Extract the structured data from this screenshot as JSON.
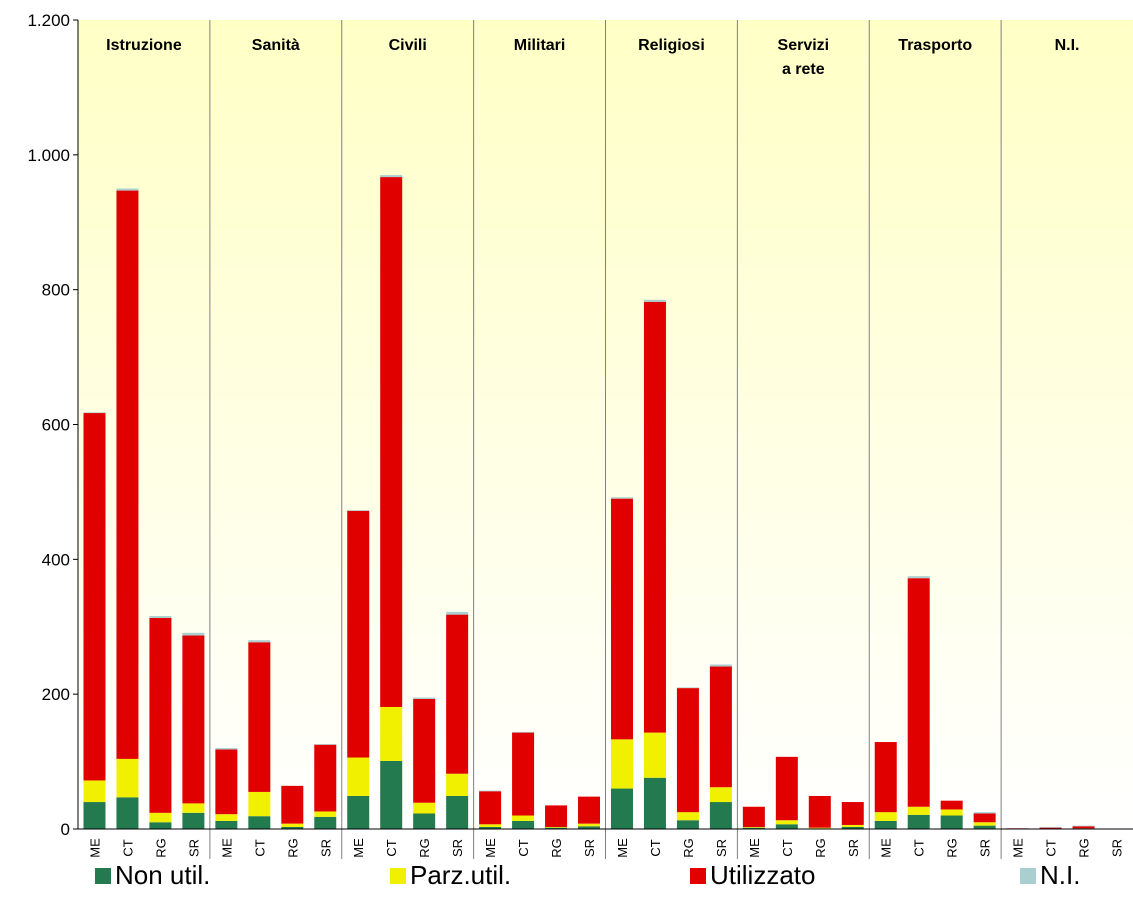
{
  "chart_data": {
    "type": "stacked_bar",
    "groups": [
      "Istruzione",
      "Sanità",
      "Civili",
      "Militari",
      "Religiosi",
      "Servizi a rete",
      "Trasporto",
      "N.I."
    ],
    "categories": [
      "ME",
      "CT",
      "RG",
      "SR",
      "ME",
      "CT",
      "RG",
      "SR",
      "ME",
      "CT",
      "RG",
      "SR",
      "ME",
      "CT",
      "RG",
      "SR",
      "ME",
      "CT",
      "RG",
      "SR",
      "ME",
      "CT",
      "RG",
      "SR",
      "ME",
      "CT",
      "RG",
      "SR",
      "ME",
      "CT",
      "RG",
      "SR"
    ],
    "series": [
      {
        "name": "Non util.",
        "color": "#237a4f",
        "values": [
          40,
          47,
          10,
          24,
          12,
          19,
          3,
          18,
          49,
          101,
          23,
          49,
          3,
          12,
          2,
          4,
          60,
          76,
          13,
          40,
          2,
          7,
          1,
          3,
          12,
          21,
          20,
          5,
          0,
          0,
          1,
          0
        ]
      },
      {
        "name": "Parz.util.",
        "color": "#f0f000",
        "values": [
          32,
          57,
          14,
          14,
          10,
          36,
          5,
          8,
          57,
          80,
          16,
          33,
          4,
          8,
          1,
          4,
          73,
          67,
          12,
          22,
          1,
          6,
          1,
          3,
          13,
          12,
          9,
          5,
          0,
          0,
          0,
          0
        ]
      },
      {
        "name": "Utilizzato",
        "color": "#e00000",
        "values": [
          545,
          843,
          289,
          249,
          96,
          222,
          56,
          99,
          366,
          786,
          154,
          236,
          49,
          123,
          32,
          40,
          357,
          639,
          184,
          179,
          30,
          94,
          47,
          34,
          104,
          339,
          13,
          13,
          1,
          2,
          3,
          0
        ]
      },
      {
        "name": "N.I.",
        "color": "#a9cfd0",
        "values": [
          1,
          3,
          3,
          4,
          2,
          3,
          0,
          1,
          1,
          3,
          2,
          4,
          1,
          1,
          0,
          0,
          2,
          3,
          1,
          3,
          0,
          0,
          0,
          0,
          0,
          3,
          0,
          2,
          0,
          1,
          1,
          0
        ]
      }
    ],
    "ylim": [
      0,
      1200
    ],
    "yticks": [
      0,
      200,
      400,
      600,
      800,
      {
        "value": 1000,
        "label": "1.000"
      },
      {
        "value": 1200,
        "label": "1.200"
      }
    ]
  }
}
